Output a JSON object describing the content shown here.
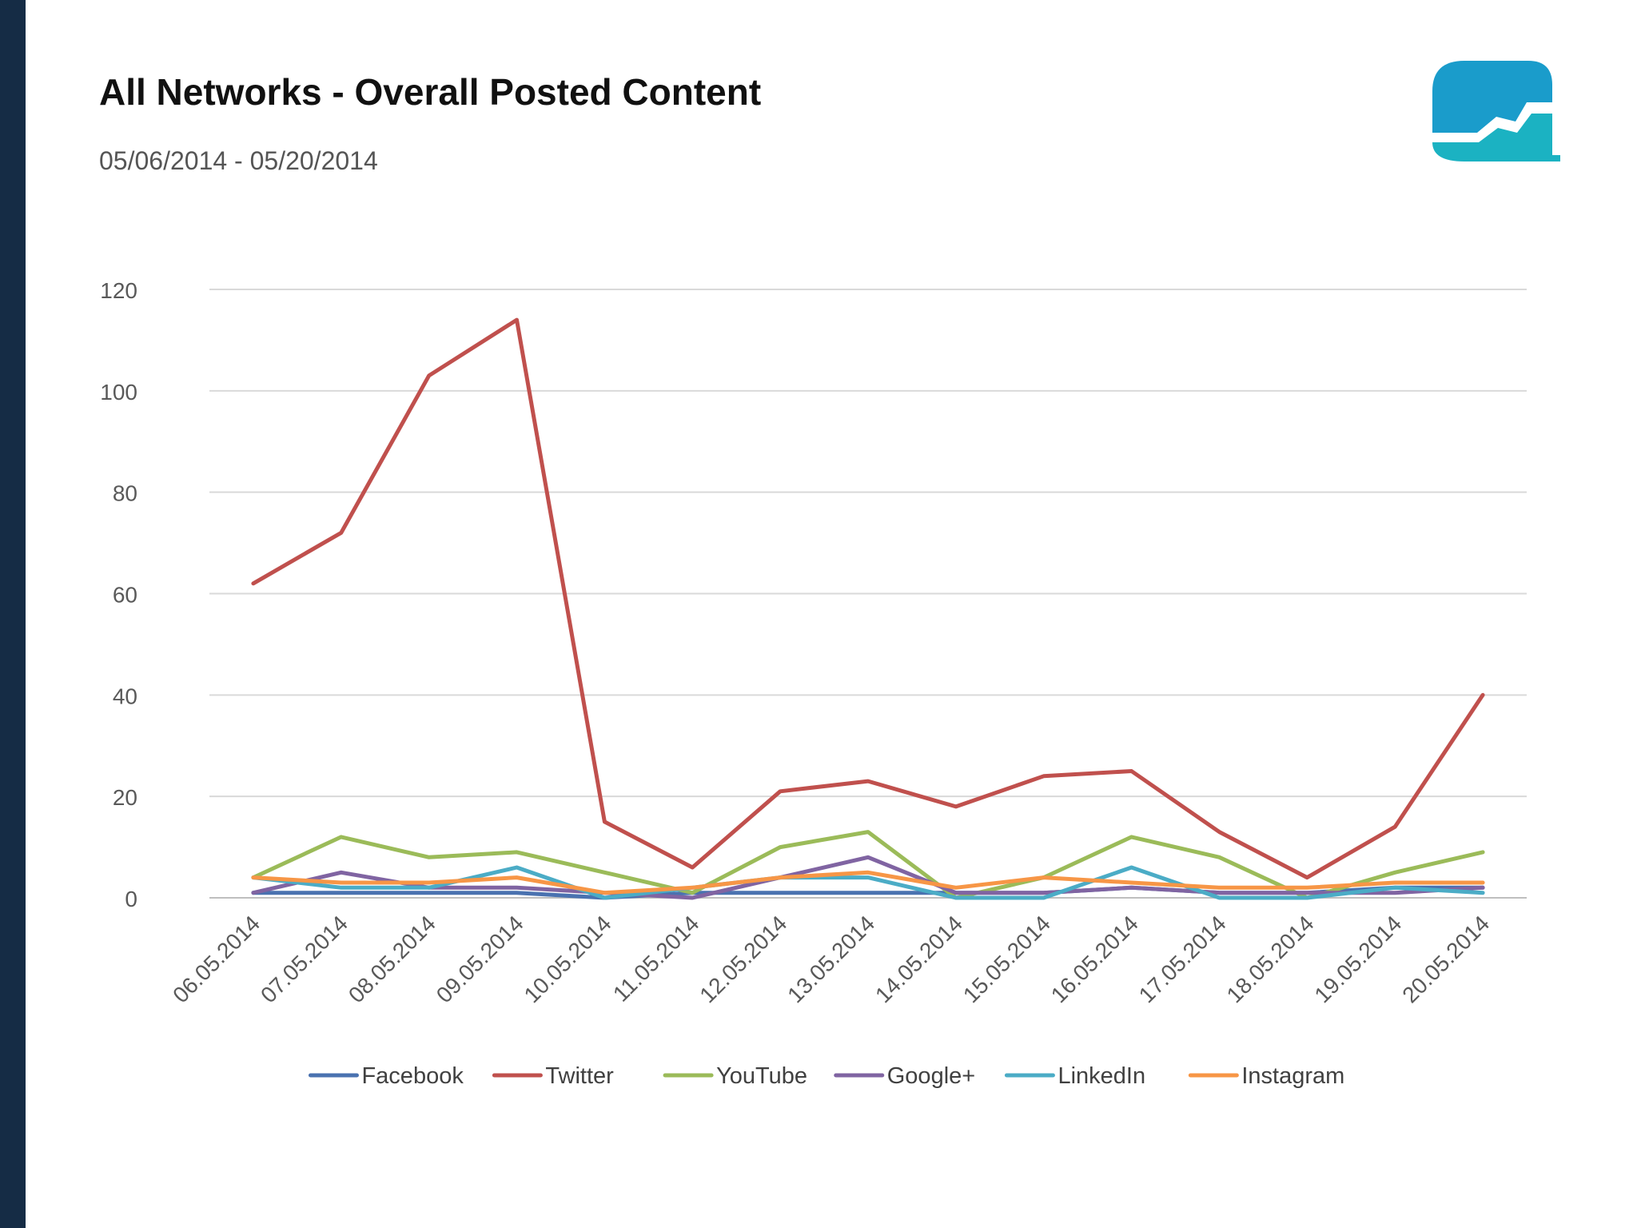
{
  "slide": {
    "title": "All Networks - Overall Posted Content",
    "subtitle": "05/06/2014 - 05/20/2014",
    "accent_color": "#152c45",
    "logo_icon": "trend-chart-logo-icon"
  },
  "chart_data": {
    "type": "line",
    "title": "",
    "xlabel": "",
    "ylabel": "",
    "ylim": [
      0,
      120
    ],
    "yticks": [
      0,
      20,
      40,
      60,
      80,
      100,
      120
    ],
    "grid": true,
    "legend_position": "bottom",
    "categories": [
      "06.05.2014",
      "07.05.2014",
      "08.05.2014",
      "09.05.2014",
      "10.05.2014",
      "11.05.2014",
      "12.05.2014",
      "13.05.2014",
      "14.05.2014",
      "15.05.2014",
      "16.05.2014",
      "17.05.2014",
      "18.05.2014",
      "19.05.2014",
      "20.05.2014"
    ],
    "series": [
      {
        "name": "Facebook",
        "color": "#4a72b0",
        "values": [
          1,
          1,
          1,
          1,
          0,
          1,
          1,
          1,
          1,
          1,
          2,
          1,
          1,
          2,
          2
        ]
      },
      {
        "name": "Twitter",
        "color": "#c0504d",
        "values": [
          62,
          72,
          103,
          114,
          15,
          6,
          21,
          23,
          18,
          24,
          25,
          13,
          4,
          14,
          40
        ]
      },
      {
        "name": "YouTube",
        "color": "#9bbb59",
        "values": [
          4,
          12,
          8,
          9,
          5,
          1,
          10,
          13,
          0,
          4,
          12,
          8,
          0,
          5,
          9
        ]
      },
      {
        "name": "Google+",
        "color": "#8064a2",
        "values": [
          1,
          5,
          2,
          2,
          1,
          0,
          4,
          8,
          1,
          1,
          2,
          1,
          1,
          1,
          2
        ]
      },
      {
        "name": "LinkedIn",
        "color": "#4bacc6",
        "values": [
          4,
          2,
          2,
          6,
          0,
          2,
          4,
          4,
          0,
          0,
          6,
          0,
          0,
          2,
          1
        ]
      },
      {
        "name": "Instagram",
        "color": "#f79646",
        "values": [
          4,
          3,
          3,
          4,
          1,
          2,
          4,
          5,
          2,
          4,
          3,
          2,
          2,
          3,
          3
        ]
      }
    ]
  }
}
